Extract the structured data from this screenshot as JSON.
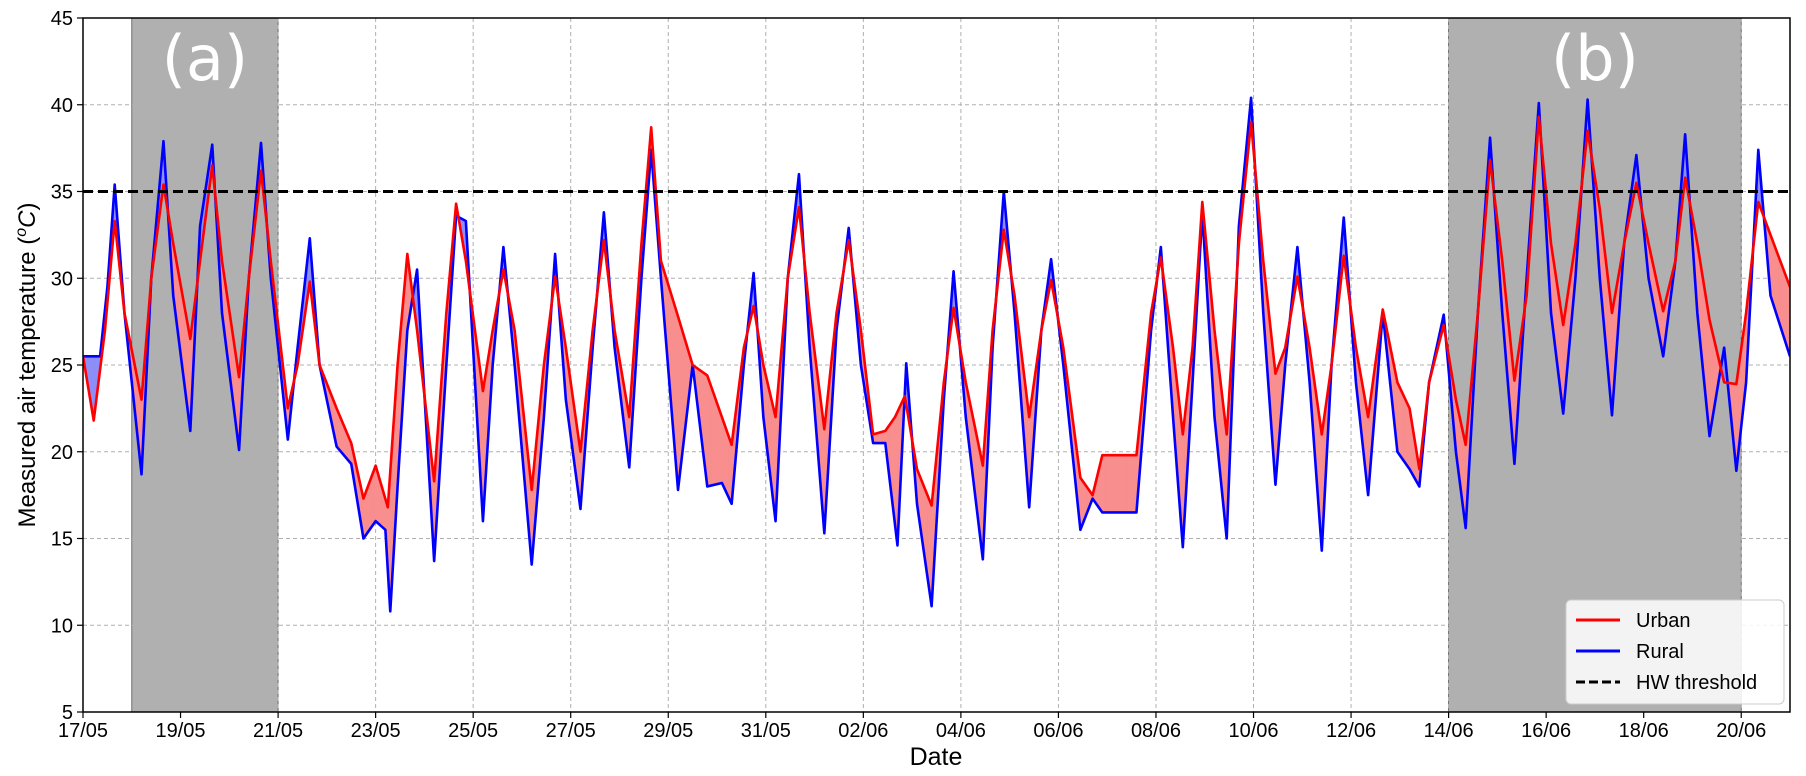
{
  "chart_data": {
    "type": "line",
    "title": "",
    "xlabel": "Date",
    "ylabel": "Measured air temperature (°C)",
    "ylabel_parts": {
      "prefix": "Measured air temperature (",
      "sup": "o",
      "unit": "C",
      "suffix": ")"
    },
    "x_start": "17/05",
    "x_end": "21/06",
    "xlim_days": [
      0,
      35
    ],
    "x_tick_labels": [
      "17/05",
      "19/05",
      "21/05",
      "23/05",
      "25/05",
      "27/05",
      "29/05",
      "31/05",
      "02/06",
      "04/06",
      "06/06",
      "08/06",
      "10/06",
      "12/06",
      "14/06",
      "16/06",
      "18/06",
      "20/06"
    ],
    "ylim": [
      5,
      45
    ],
    "y_ticks": [
      5,
      10,
      15,
      20,
      25,
      30,
      35,
      40,
      45
    ],
    "grid": true,
    "threshold": {
      "name": "HW threshold",
      "value": 35,
      "color": "#000000",
      "style": "dashed"
    },
    "shaded_periods": [
      {
        "label": "(a)",
        "from": "18/05",
        "to": "21/05"
      },
      {
        "label": "(b)",
        "from": "14/06",
        "to": "20/06"
      }
    ],
    "fill_between": {
      "urban_warmer_color": "#f88e8e",
      "rural_warmer_color": "#8e8ef8"
    },
    "legend": {
      "position": "lower-right",
      "entries": [
        "Urban",
        "Rural",
        "HW threshold"
      ]
    },
    "series": [
      {
        "name": "Urban",
        "color": "#ff0000",
        "points": [
          [
            0.0,
            25.5
          ],
          [
            0.22,
            21.8
          ],
          [
            0.45,
            27
          ],
          [
            0.65,
            33.3
          ],
          [
            0.85,
            28
          ],
          [
            1.2,
            23
          ],
          [
            1.4,
            30
          ],
          [
            1.65,
            35.4
          ],
          [
            1.85,
            32
          ],
          [
            2.2,
            26.5
          ],
          [
            2.4,
            31
          ],
          [
            2.65,
            36.5
          ],
          [
            2.85,
            31
          ],
          [
            3.2,
            24.3
          ],
          [
            3.4,
            30
          ],
          [
            3.65,
            36.2
          ],
          [
            3.85,
            31
          ],
          [
            4.2,
            22.5
          ],
          [
            4.4,
            25
          ],
          [
            4.65,
            29.8
          ],
          [
            4.85,
            25
          ],
          [
            5.2,
            22.5
          ],
          [
            5.5,
            20.5
          ],
          [
            5.75,
            17.3
          ],
          [
            6.0,
            19.2
          ],
          [
            6.25,
            16.8
          ],
          [
            6.45,
            25
          ],
          [
            6.65,
            31.4
          ],
          [
            6.85,
            27
          ],
          [
            7.2,
            18.3
          ],
          [
            7.45,
            28
          ],
          [
            7.65,
            34.3
          ],
          [
            7.85,
            31
          ],
          [
            8.2,
            23.5
          ],
          [
            8.4,
            27
          ],
          [
            8.62,
            30.5
          ],
          [
            8.85,
            27
          ],
          [
            9.2,
            17.8
          ],
          [
            9.45,
            25
          ],
          [
            9.68,
            30.1
          ],
          [
            9.9,
            26
          ],
          [
            10.2,
            20
          ],
          [
            10.45,
            27
          ],
          [
            10.68,
            32.2
          ],
          [
            10.9,
            27
          ],
          [
            11.2,
            22
          ],
          [
            11.45,
            32
          ],
          [
            11.65,
            38.7
          ],
          [
            11.85,
            31
          ],
          [
            12.2,
            27.8
          ],
          [
            12.5,
            25
          ],
          [
            12.8,
            24.4
          ],
          [
            13.1,
            22
          ],
          [
            13.3,
            20.4
          ],
          [
            13.55,
            26
          ],
          [
            13.75,
            28.4
          ],
          [
            13.95,
            25
          ],
          [
            14.2,
            22
          ],
          [
            14.45,
            30
          ],
          [
            14.68,
            34.1
          ],
          [
            14.9,
            28
          ],
          [
            15.2,
            21.3
          ],
          [
            15.45,
            28
          ],
          [
            15.7,
            32.2
          ],
          [
            15.95,
            27
          ],
          [
            16.2,
            21
          ],
          [
            16.45,
            21.2
          ],
          [
            16.65,
            22
          ],
          [
            16.85,
            23.2
          ],
          [
            17.1,
            19
          ],
          [
            17.4,
            16.9
          ],
          [
            17.65,
            24
          ],
          [
            17.85,
            28.3
          ],
          [
            18.1,
            24
          ],
          [
            18.45,
            19.2
          ],
          [
            18.65,
            27
          ],
          [
            18.88,
            32.8
          ],
          [
            19.1,
            29
          ],
          [
            19.4,
            22
          ],
          [
            19.65,
            27
          ],
          [
            19.85,
            29.9
          ],
          [
            20.1,
            26
          ],
          [
            20.45,
            18.5
          ],
          [
            20.7,
            17.5
          ],
          [
            20.9,
            19.8
          ],
          [
            21.6,
            19.8
          ],
          [
            21.9,
            28
          ],
          [
            22.1,
            31.2
          ],
          [
            22.35,
            26
          ],
          [
            22.55,
            21
          ],
          [
            22.75,
            26
          ],
          [
            22.95,
            34.4
          ],
          [
            23.2,
            27
          ],
          [
            23.45,
            21
          ],
          [
            23.7,
            32
          ],
          [
            23.95,
            39
          ],
          [
            24.2,
            31
          ],
          [
            24.45,
            24.5
          ],
          [
            24.65,
            26
          ],
          [
            24.9,
            30.1
          ],
          [
            25.15,
            26
          ],
          [
            25.4,
            21
          ],
          [
            25.6,
            25
          ],
          [
            25.85,
            31.3
          ],
          [
            26.1,
            26
          ],
          [
            26.35,
            22
          ],
          [
            26.65,
            28.2
          ],
          [
            26.95,
            24
          ],
          [
            27.2,
            22.5
          ],
          [
            27.4,
            19
          ],
          [
            27.6,
            24
          ],
          [
            27.9,
            27.3
          ],
          [
            28.15,
            23
          ],
          [
            28.35,
            20.4
          ],
          [
            28.6,
            28
          ],
          [
            28.85,
            36.8
          ],
          [
            29.1,
            31
          ],
          [
            29.35,
            24.1
          ],
          [
            29.6,
            29
          ],
          [
            29.85,
            39.3
          ],
          [
            30.1,
            32
          ],
          [
            30.35,
            27.3
          ],
          [
            30.6,
            32
          ],
          [
            30.85,
            38.5
          ],
          [
            31.1,
            34
          ],
          [
            31.35,
            28
          ],
          [
            31.6,
            32
          ],
          [
            31.85,
            35.5
          ],
          [
            32.1,
            32
          ],
          [
            32.4,
            28.1
          ],
          [
            32.65,
            31
          ],
          [
            32.85,
            35.8
          ],
          [
            33.1,
            32
          ],
          [
            33.35,
            27.6
          ],
          [
            33.65,
            24
          ],
          [
            33.9,
            23.9
          ],
          [
            34.1,
            28
          ],
          [
            34.35,
            34.4
          ],
          [
            34.6,
            32.5
          ],
          [
            35.0,
            29.5
          ]
        ]
      },
      {
        "name": "Rural",
        "color": "#0000ff",
        "points": [
          [
            0.0,
            25.5
          ],
          [
            0.35,
            25.5
          ],
          [
            0.5,
            29.5
          ],
          [
            0.65,
            35.4
          ],
          [
            0.85,
            28
          ],
          [
            1.2,
            18.7
          ],
          [
            1.4,
            30
          ],
          [
            1.65,
            37.9
          ],
          [
            1.85,
            29
          ],
          [
            2.2,
            21.2
          ],
          [
            2.4,
            33
          ],
          [
            2.65,
            37.7
          ],
          [
            2.85,
            28
          ],
          [
            3.2,
            20.1
          ],
          [
            3.4,
            30
          ],
          [
            3.65,
            37.8
          ],
          [
            3.85,
            30
          ],
          [
            4.2,
            20.7
          ],
          [
            4.4,
            26
          ],
          [
            4.65,
            32.3
          ],
          [
            4.85,
            25
          ],
          [
            5.2,
            20.3
          ],
          [
            5.5,
            19.3
          ],
          [
            5.75,
            15
          ],
          [
            6.0,
            16
          ],
          [
            6.2,
            15.5
          ],
          [
            6.3,
            10.8
          ],
          [
            6.45,
            18
          ],
          [
            6.65,
            27
          ],
          [
            6.85,
            30.5
          ],
          [
            7.2,
            13.7
          ],
          [
            7.45,
            25
          ],
          [
            7.65,
            33.6
          ],
          [
            7.85,
            33.3
          ],
          [
            8.2,
            16
          ],
          [
            8.4,
            25
          ],
          [
            8.62,
            31.8
          ],
          [
            8.85,
            25
          ],
          [
            9.2,
            13.5
          ],
          [
            9.45,
            22
          ],
          [
            9.68,
            31.4
          ],
          [
            9.9,
            23
          ],
          [
            10.2,
            16.7
          ],
          [
            10.45,
            26
          ],
          [
            10.68,
            33.8
          ],
          [
            10.9,
            26
          ],
          [
            11.2,
            19.1
          ],
          [
            11.45,
            30
          ],
          [
            11.65,
            37.4
          ],
          [
            11.85,
            30
          ],
          [
            12.2,
            17.8
          ],
          [
            12.5,
            25
          ],
          [
            12.8,
            18
          ],
          [
            13.1,
            18.2
          ],
          [
            13.3,
            17
          ],
          [
            13.55,
            25
          ],
          [
            13.75,
            30.3
          ],
          [
            13.95,
            22
          ],
          [
            14.2,
            16
          ],
          [
            14.45,
            30
          ],
          [
            14.68,
            36
          ],
          [
            14.9,
            26
          ],
          [
            15.2,
            15.3
          ],
          [
            15.45,
            27
          ],
          [
            15.7,
            32.9
          ],
          [
            15.95,
            25
          ],
          [
            16.2,
            20.5
          ],
          [
            16.45,
            20.5
          ],
          [
            16.7,
            14.6
          ],
          [
            16.88,
            25.1
          ],
          [
            17.1,
            17
          ],
          [
            17.4,
            11.1
          ],
          [
            17.65,
            23
          ],
          [
            17.85,
            30.4
          ],
          [
            18.1,
            22
          ],
          [
            18.45,
            13.8
          ],
          [
            18.65,
            26
          ],
          [
            18.88,
            35
          ],
          [
            19.1,
            28
          ],
          [
            19.4,
            16.8
          ],
          [
            19.65,
            27
          ],
          [
            19.85,
            31.1
          ],
          [
            20.1,
            25
          ],
          [
            20.45,
            15.5
          ],
          [
            20.7,
            17.3
          ],
          [
            20.9,
            16.5
          ],
          [
            21.6,
            16.5
          ],
          [
            21.9,
            27
          ],
          [
            22.1,
            31.8
          ],
          [
            22.35,
            22
          ],
          [
            22.55,
            14.5
          ],
          [
            22.75,
            24
          ],
          [
            22.95,
            33.8
          ],
          [
            23.2,
            22
          ],
          [
            23.45,
            15
          ],
          [
            23.7,
            33
          ],
          [
            23.95,
            40.4
          ],
          [
            24.2,
            28
          ],
          [
            24.45,
            18.1
          ],
          [
            24.65,
            25
          ],
          [
            24.9,
            31.8
          ],
          [
            25.15,
            24
          ],
          [
            25.4,
            14.3
          ],
          [
            25.6,
            25
          ],
          [
            25.85,
            33.5
          ],
          [
            26.1,
            24
          ],
          [
            26.35,
            17.5
          ],
          [
            26.65,
            28
          ],
          [
            26.95,
            20
          ],
          [
            27.2,
            19
          ],
          [
            27.4,
            18
          ],
          [
            27.6,
            24
          ],
          [
            27.9,
            27.9
          ],
          [
            28.15,
            20
          ],
          [
            28.35,
            15.6
          ],
          [
            28.6,
            28
          ],
          [
            28.85,
            38.1
          ],
          [
            29.1,
            28
          ],
          [
            29.35,
            19.3
          ],
          [
            29.6,
            30
          ],
          [
            29.85,
            40.1
          ],
          [
            30.1,
            28
          ],
          [
            30.35,
            22.2
          ],
          [
            30.6,
            30
          ],
          [
            30.85,
            40.3
          ],
          [
            31.1,
            30
          ],
          [
            31.35,
            22.1
          ],
          [
            31.6,
            32
          ],
          [
            31.85,
            37.1
          ],
          [
            32.1,
            30
          ],
          [
            32.4,
            25.5
          ],
          [
            32.65,
            31
          ],
          [
            32.85,
            38.3
          ],
          [
            33.1,
            28
          ],
          [
            33.35,
            20.9
          ],
          [
            33.65,
            26
          ],
          [
            33.9,
            18.9
          ],
          [
            34.1,
            24
          ],
          [
            34.35,
            37.4
          ],
          [
            34.6,
            29
          ],
          [
            35.0,
            25.5
          ]
        ]
      }
    ]
  }
}
